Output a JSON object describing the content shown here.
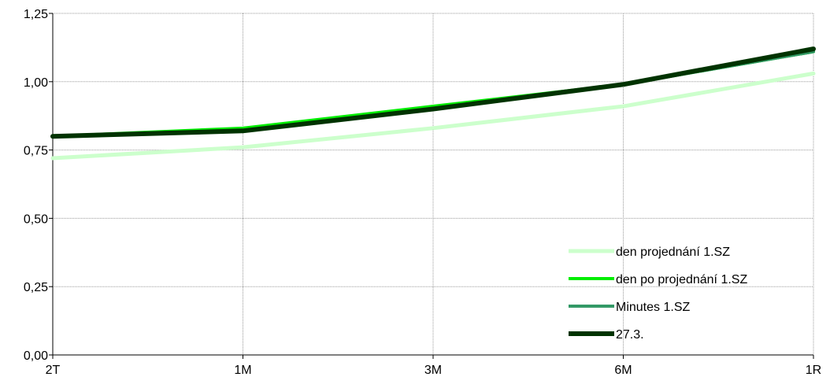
{
  "chart_data": {
    "type": "line",
    "categories": [
      "2T",
      "1M",
      "3M",
      "6M",
      "1R"
    ],
    "y_ticks": [
      "0,00",
      "0,25",
      "0,50",
      "0,75",
      "1,00",
      "1,25"
    ],
    "ylim": [
      0,
      1.25
    ],
    "grid": true,
    "legend_position": "bottom-right",
    "series": [
      {
        "name": "den projednání 1.SZ",
        "values": [
          0.72,
          0.76,
          0.83,
          0.91,
          1.03
        ],
        "color": "#ccffcc"
      },
      {
        "name": "den po projednání 1.SZ",
        "values": [
          0.8,
          0.83,
          0.91,
          0.99,
          1.11
        ],
        "color": "#00ee00"
      },
      {
        "name": "Minutes 1.SZ",
        "values": [
          0.8,
          0.82,
          0.9,
          0.99,
          1.11
        ],
        "color": "#339966"
      },
      {
        "name": "27.3.",
        "values": [
          0.8,
          0.82,
          0.9,
          0.99,
          1.12
        ],
        "color": "#003300"
      }
    ]
  }
}
